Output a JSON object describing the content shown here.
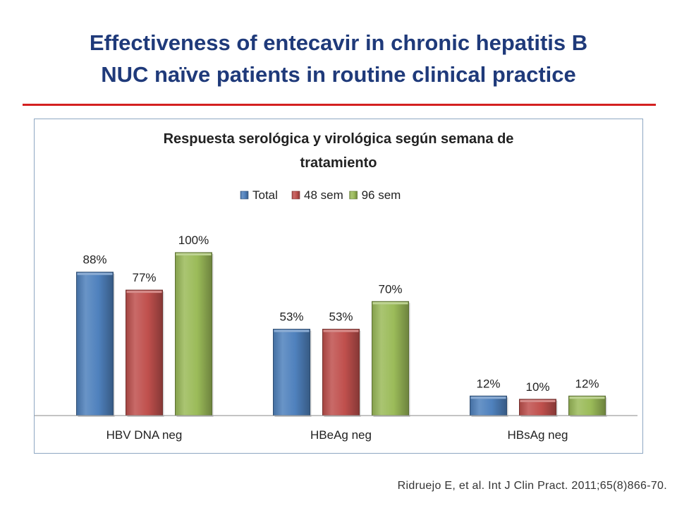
{
  "slide": {
    "title_line1": "Effectiveness of entecavir in chronic hepatitis B",
    "title_line2": "NUC naïve patients in routine clinical practice",
    "citation": "Ridruejo E, et al. Int J Clin Pract. 2011;65(8)866-70."
  },
  "colors": {
    "title": "#1f3a7a",
    "rule": "#d42020",
    "total": "#4f81bd",
    "sem48": "#c0504d",
    "sem96": "#9bbb59"
  },
  "chart_data": {
    "type": "bar",
    "title_lines": [
      "Respuesta serológica y virológica según semana de",
      "tratamiento"
    ],
    "categories": [
      "HBV DNA neg",
      "HBeAg neg",
      "HBsAg neg"
    ],
    "series": [
      {
        "name": "Total",
        "values": [
          88,
          53,
          12
        ],
        "labels": [
          "88%",
          "53%",
          "12%"
        ],
        "color": "#4f81bd"
      },
      {
        "name": "48 sem",
        "values": [
          77,
          53,
          10
        ],
        "labels": [
          "77%",
          "53%",
          "10%"
        ],
        "color": "#c0504d"
      },
      {
        "name": "96 sem",
        "values": [
          100,
          70,
          12
        ],
        "labels": [
          "100%",
          "70%",
          "12%"
        ],
        "color": "#9bbb59"
      }
    ],
    "ylim": [
      0,
      100
    ],
    "grid": false,
    "legend_position": "top"
  }
}
